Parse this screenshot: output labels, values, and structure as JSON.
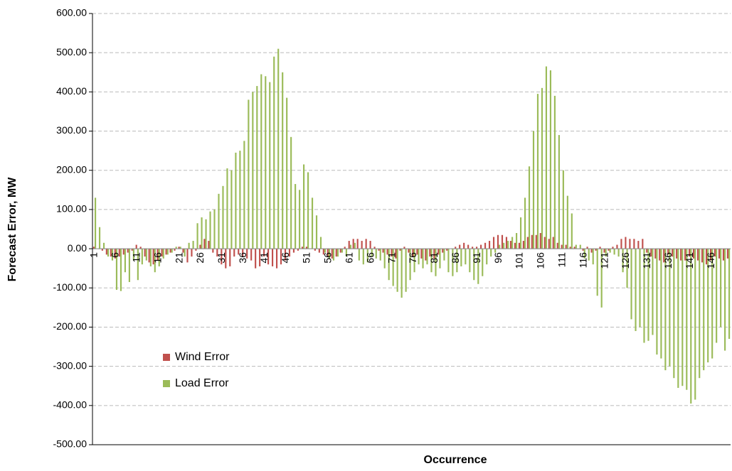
{
  "chart_data": {
    "type": "bar",
    "y_label": "Forecast Error, MW",
    "x_label": "Occurrence",
    "categories": [
      "1",
      null,
      null,
      null,
      null,
      "6",
      null,
      null,
      null,
      null,
      "11",
      null,
      null,
      null,
      null,
      "16",
      null,
      null,
      null,
      null,
      "21",
      null,
      null,
      null,
      null,
      "26",
      null,
      null,
      null,
      null,
      "31",
      null,
      null,
      null,
      null,
      "36",
      null,
      null,
      null,
      null,
      "41",
      null,
      null,
      null,
      null,
      "46",
      null,
      null,
      null,
      null,
      "51",
      null,
      null,
      null,
      null,
      "56",
      null,
      null,
      null,
      null,
      "61",
      null,
      null,
      null,
      null,
      "66",
      null,
      null,
      null,
      null,
      "71",
      null,
      null,
      null,
      null,
      "76",
      null,
      null,
      null,
      null,
      "81",
      null,
      null,
      null,
      null,
      "86",
      null,
      null,
      null,
      null,
      "91",
      null,
      null,
      null,
      null,
      "96",
      null,
      null,
      null,
      null,
      "101",
      null,
      null,
      null,
      null,
      "106",
      null,
      null,
      null,
      null,
      "111",
      null,
      null,
      null,
      null,
      "116",
      null,
      null,
      null,
      null,
      "121",
      null,
      null,
      null,
      null,
      "126",
      null,
      null,
      null,
      null,
      "131",
      null,
      null,
      null,
      null,
      "136",
      null,
      null,
      null,
      null,
      "141",
      null,
      null,
      null,
      null,
      "146",
      null,
      null,
      null,
      null
    ],
    "series": [
      {
        "name": "Wind Error",
        "color": "#c0504d",
        "values": [
          5,
          0,
          -5,
          -15,
          -20,
          -25,
          -20,
          -15,
          -10,
          -5,
          10,
          5,
          -20,
          -35,
          -40,
          -30,
          -20,
          -15,
          -10,
          -5,
          5,
          -10,
          -35,
          -20,
          -5,
          10,
          25,
          20,
          -10,
          -20,
          -40,
          -50,
          -45,
          -20,
          -15,
          -20,
          -25,
          -30,
          -50,
          -45,
          -20,
          -40,
          -45,
          -50,
          -40,
          -30,
          -20,
          -10,
          -5,
          5,
          5,
          0,
          -5,
          -10,
          -15,
          -20,
          -25,
          -20,
          -10,
          5,
          20,
          25,
          25,
          20,
          25,
          20,
          5,
          -5,
          -10,
          -15,
          -20,
          -25,
          -5,
          5,
          -10,
          -20,
          -15,
          -25,
          -30,
          -20,
          -25,
          -15,
          -10,
          -5,
          0,
          5,
          10,
          15,
          10,
          5,
          5,
          10,
          15,
          20,
          30,
          35,
          35,
          30,
          20,
          15,
          15,
          20,
          30,
          35,
          35,
          40,
          30,
          25,
          30,
          15,
          10,
          10,
          5,
          5,
          0,
          -5,
          5,
          -10,
          -5,
          5,
          -10,
          -5,
          5,
          10,
          25,
          30,
          25,
          25,
          20,
          25,
          -10,
          -20,
          -25,
          -30,
          -35,
          -15,
          -20,
          -25,
          -30,
          -30,
          -20,
          -25,
          -30,
          -35,
          -40,
          -30,
          -20,
          -25,
          -30,
          -25
        ]
      },
      {
        "name": "Load Error",
        "color": "#9bbb59",
        "values": [
          130,
          55,
          15,
          -20,
          -30,
          -105,
          -108,
          -60,
          -85,
          -30,
          -80,
          -40,
          -30,
          -45,
          -60,
          -45,
          -25,
          -15,
          -10,
          5,
          5,
          -20,
          15,
          20,
          65,
          80,
          75,
          95,
          100,
          140,
          160,
          205,
          200,
          245,
          250,
          275,
          380,
          400,
          415,
          445,
          440,
          425,
          490,
          510,
          450,
          385,
          285,
          165,
          150,
          215,
          195,
          130,
          85,
          30,
          -10,
          -25,
          -30,
          -20,
          -10,
          -20,
          10,
          15,
          -30,
          -40,
          -35,
          -20,
          -25,
          -30,
          -50,
          -80,
          -95,
          -110,
          -125,
          -110,
          -80,
          -60,
          -40,
          -50,
          -40,
          -60,
          -70,
          -50,
          -30,
          -60,
          -70,
          -60,
          -45,
          -40,
          -60,
          -80,
          -90,
          -70,
          -40,
          -20,
          -10,
          10,
          15,
          20,
          30,
          40,
          80,
          130,
          210,
          300,
          395,
          410,
          465,
          455,
          390,
          290,
          200,
          135,
          90,
          10,
          10,
          -25,
          -30,
          -40,
          -120,
          -150,
          -20,
          -10,
          -15,
          -20,
          -60,
          -100,
          -180,
          -210,
          -200,
          -240,
          -235,
          -220,
          -270,
          -280,
          -310,
          -300,
          -330,
          -355,
          -350,
          -360,
          -395,
          -385,
          -330,
          -310,
          -290,
          -280,
          -240,
          -200,
          -260,
          -230
        ]
      }
    ],
    "ylim": [
      -500,
      600
    ],
    "yticks": [
      {
        "value": -500,
        "label": "-500.00"
      },
      {
        "value": -400,
        "label": "-400.00"
      },
      {
        "value": -300,
        "label": "-300.00"
      },
      {
        "value": -200,
        "label": "-200.00"
      },
      {
        "value": -100,
        "label": "-100.00"
      },
      {
        "value": 0,
        "label": "0.00"
      },
      {
        "value": 100,
        "label": "100.00"
      },
      {
        "value": 200,
        "label": "200.00"
      },
      {
        "value": 300,
        "label": "300.00"
      },
      {
        "value": 400,
        "label": "400.00"
      },
      {
        "value": 500,
        "label": "500.00"
      },
      {
        "value": 600,
        "label": "600.00"
      }
    ],
    "grid": true,
    "legend": "lower left"
  }
}
